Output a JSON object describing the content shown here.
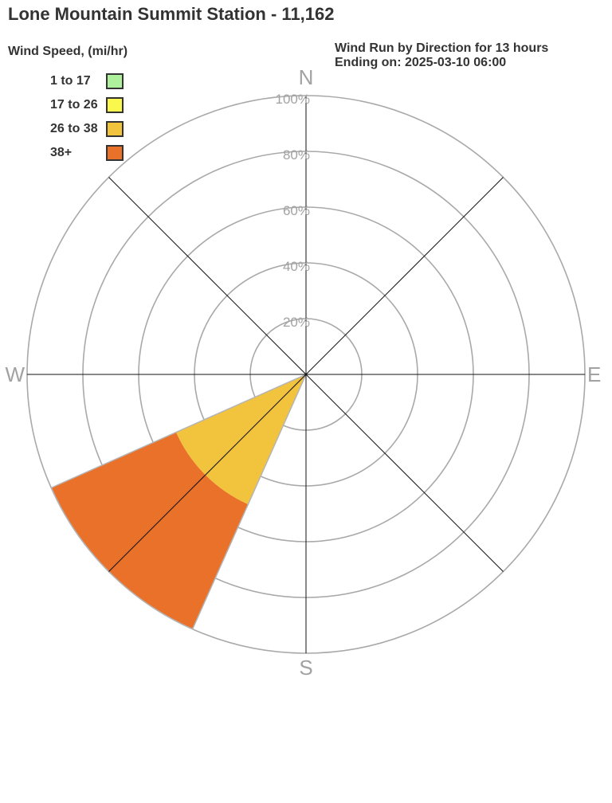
{
  "chart_data": {
    "type": "bar",
    "subtype": "wind_rose_polar_stacked",
    "title": "Lone Mountain Summit Station - 11,162",
    "annotation_line1": "Wind Run by Direction for 13 hours",
    "annotation_line2": "Ending on: 2025-03-10 06:00",
    "legend_title": "Wind Speed, (mi/hr)",
    "units": "mi/hr",
    "speed_bins": [
      {
        "label": "1 to 17",
        "color": "#aef09b"
      },
      {
        "label": "17 to 26",
        "color": "#fbf84d"
      },
      {
        "label": "26 to 38",
        "color": "#f2c33c"
      },
      {
        "label": "38+",
        "color": "#e9712a"
      }
    ],
    "compass_labels": {
      "n": "N",
      "e": "E",
      "s": "S",
      "w": "W"
    },
    "radial_ticks": [
      {
        "pct": 20,
        "label": "20%"
      },
      {
        "pct": 40,
        "label": "40%"
      },
      {
        "pct": 60,
        "label": "60%"
      },
      {
        "pct": 80,
        "label": "80%"
      },
      {
        "pct": 100,
        "label": "100%"
      }
    ],
    "rmax_pct": 100,
    "directions": 8,
    "sectors": [
      {
        "direction": "SW",
        "center_deg": 225,
        "width_deg": 42,
        "segments": [
          {
            "bin": "26 to 38",
            "from_pct": 0,
            "to_pct": 51,
            "color": "#f2c33c"
          },
          {
            "bin": "38+",
            "from_pct": 51,
            "to_pct": 100,
            "color": "#e9712a"
          }
        ]
      }
    ],
    "colors": {
      "grid": "#a9a9a9",
      "spoke": "#111111",
      "tick_label": "#a2a2a2",
      "compass_label": "#a2a2a2",
      "wedge_outline": "#b5b5b5",
      "text": "#333333",
      "background": "#ffffff"
    }
  }
}
